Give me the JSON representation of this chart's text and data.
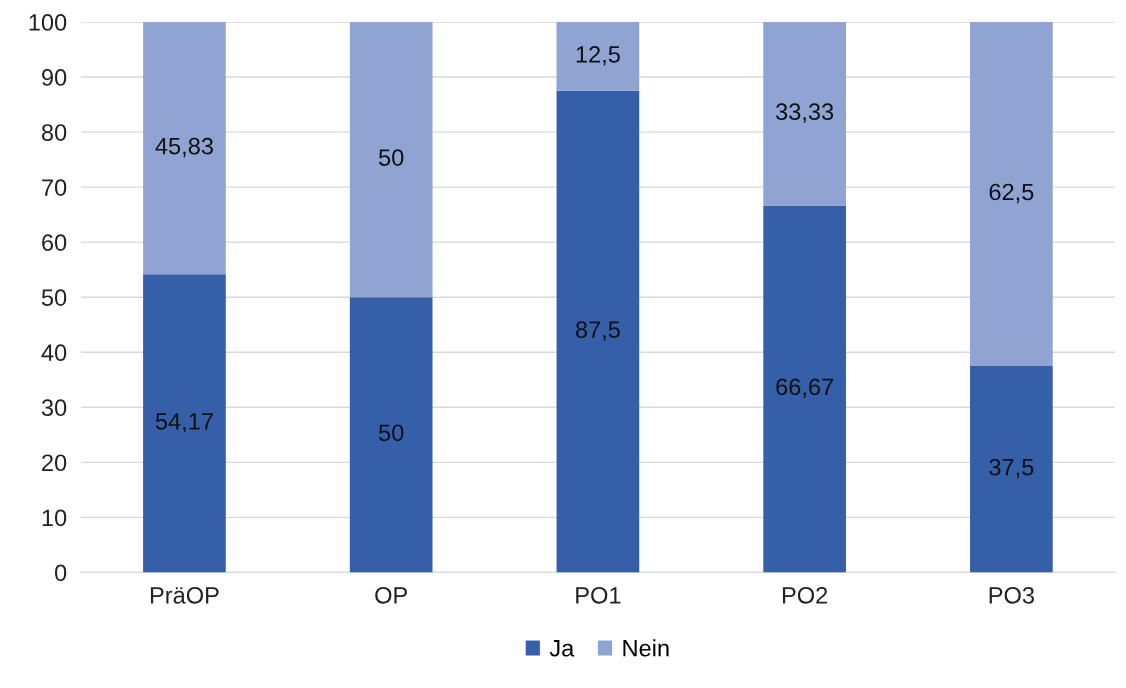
{
  "chart_data": {
    "type": "bar",
    "stacked": true,
    "categories": [
      "PräOP",
      "OP",
      "PO1",
      "PO2",
      "PO3"
    ],
    "series": [
      {
        "name": "Ja",
        "color": "#3560a9",
        "values": [
          54.17,
          50,
          87.5,
          66.67,
          37.5
        ],
        "value_labels": [
          "54,17",
          "50",
          "87,5",
          "66,67",
          "37,5"
        ]
      },
      {
        "name": "Nein",
        "color": "#8fa4d3",
        "values": [
          45.83,
          50,
          12.5,
          33.33,
          62.5
        ],
        "value_labels": [
          "45,83",
          "50",
          "12,5",
          "33,33",
          "62,5"
        ]
      }
    ],
    "ylim": [
      0,
      100
    ],
    "yticks": [
      0,
      10,
      20,
      30,
      40,
      50,
      60,
      70,
      80,
      90,
      100
    ],
    "grid": "y",
    "legend": "bottom"
  }
}
